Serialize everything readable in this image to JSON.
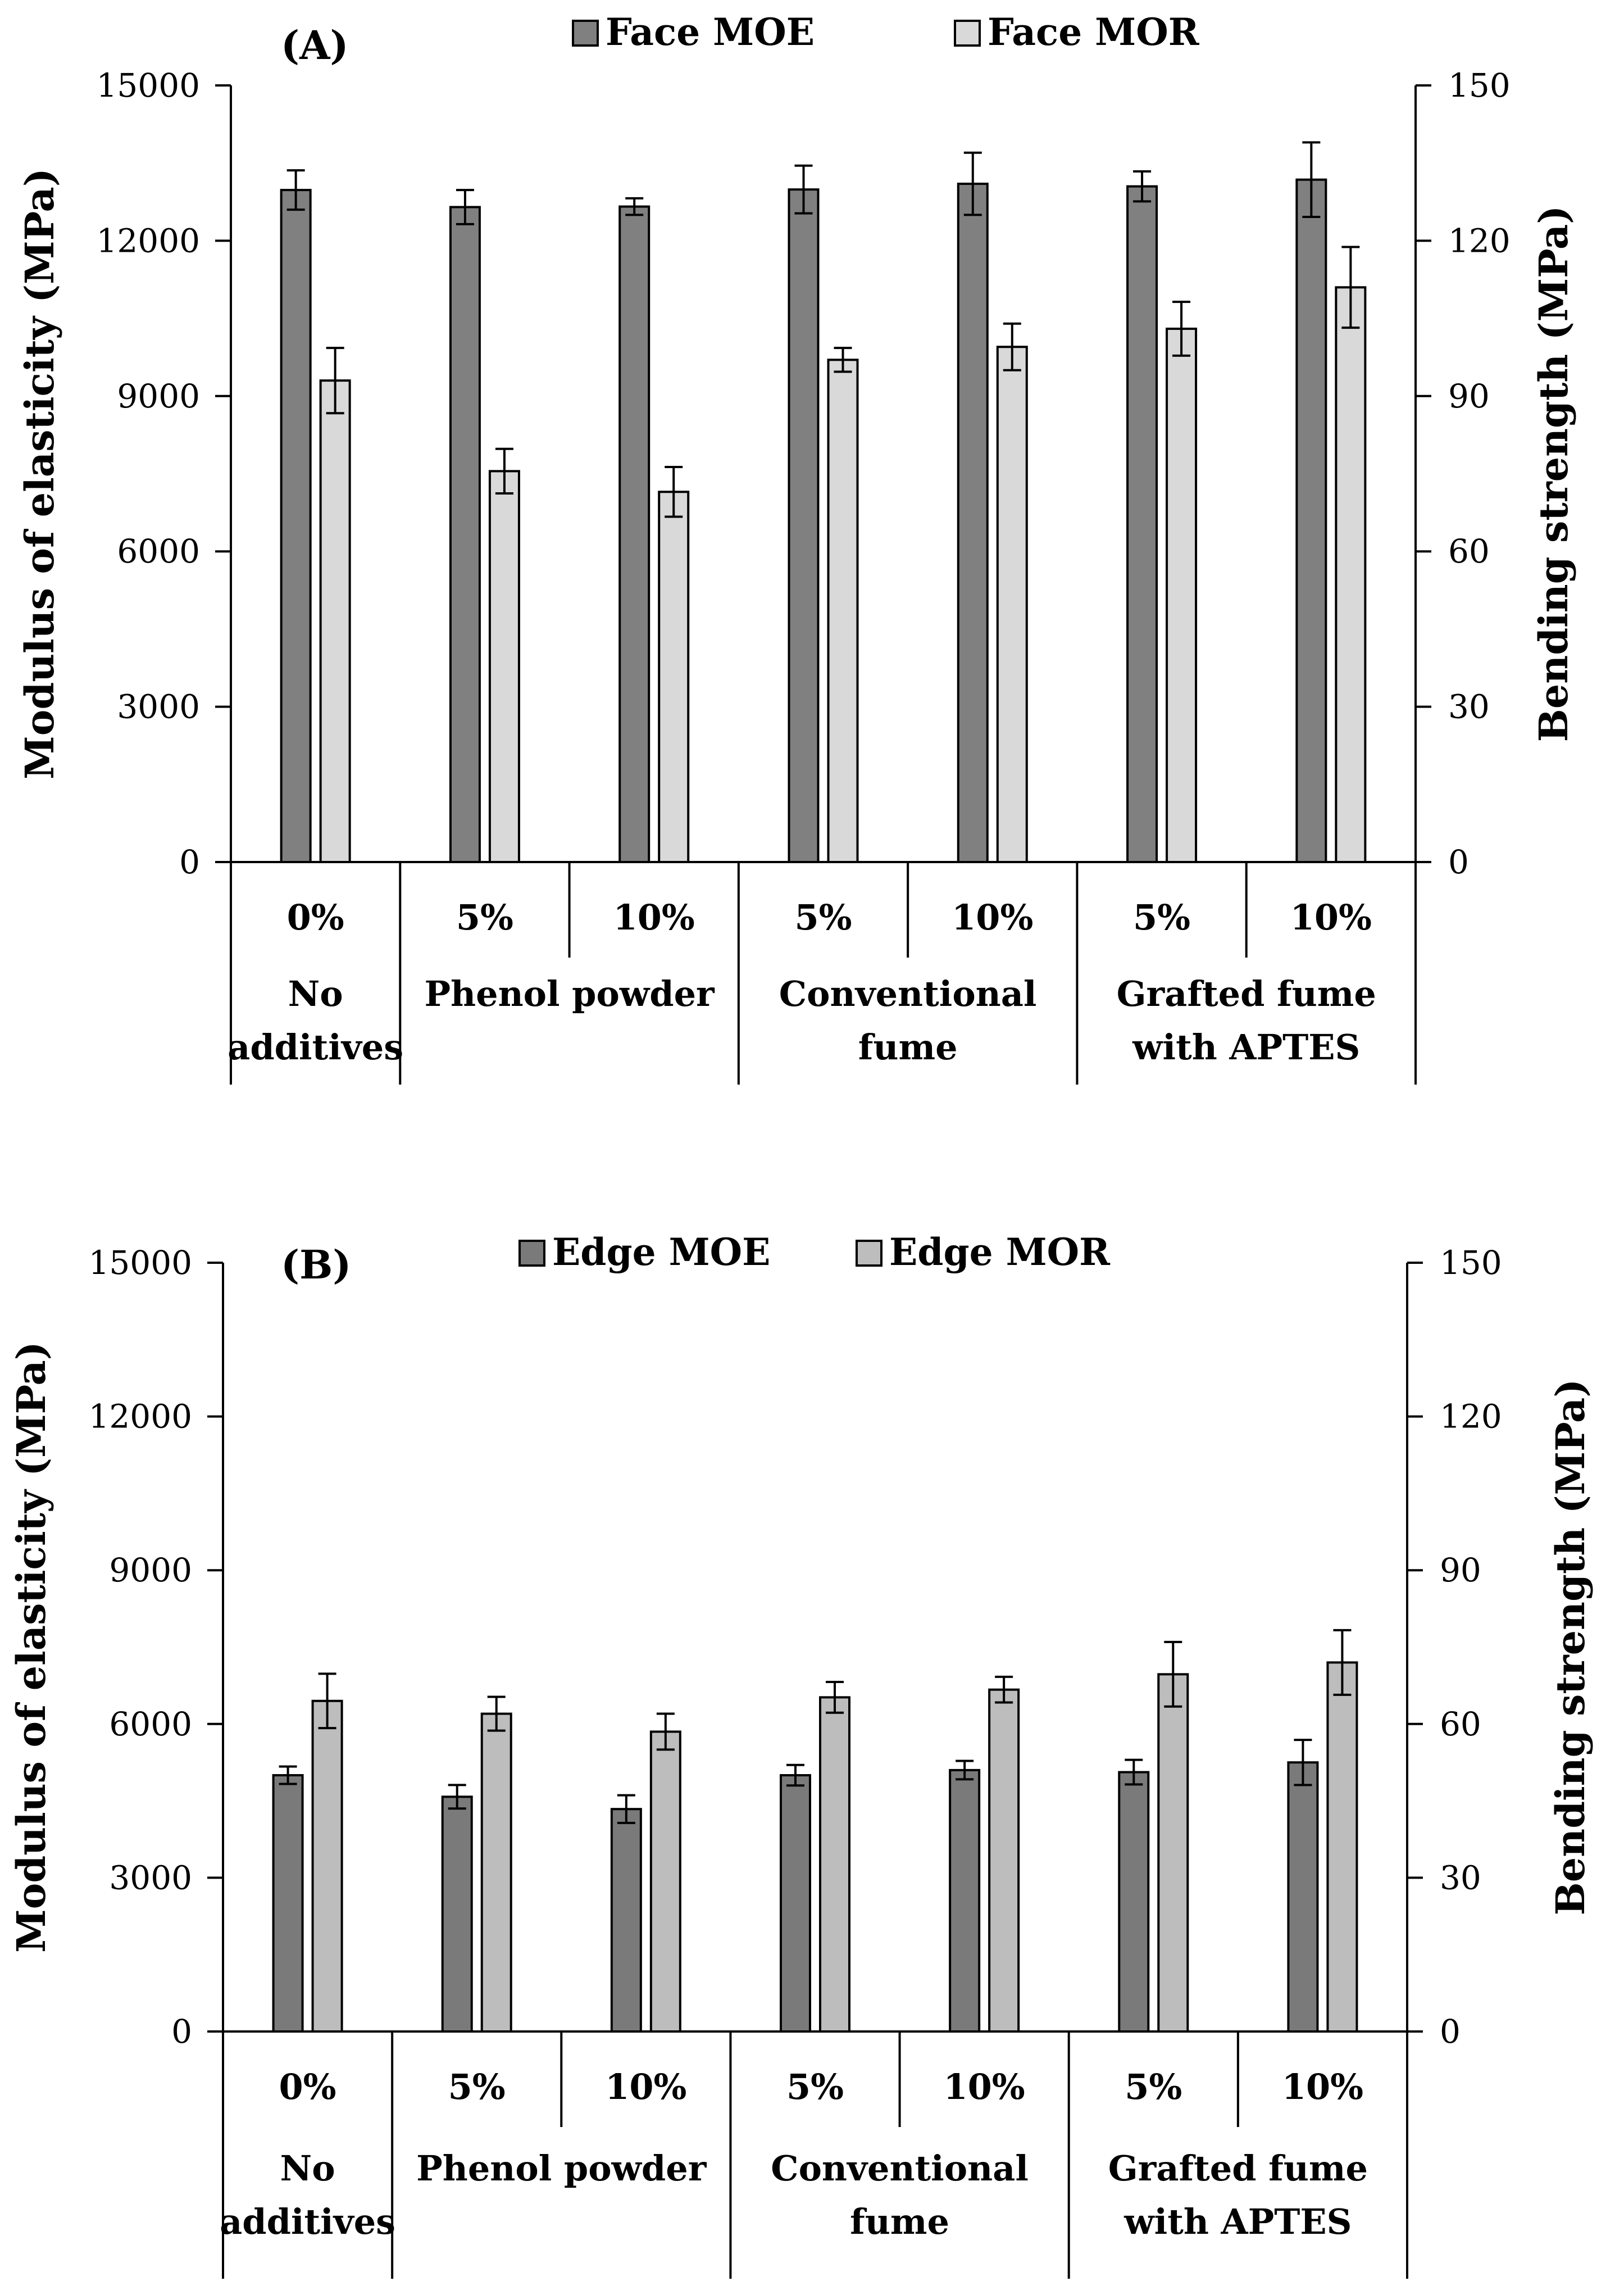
{
  "chart_data": [
    {
      "type": "bar",
      "panel_label": "(A)",
      "ylabel": "Modulus of elasticity (MPa)",
      "y2label": "Bending strength (MPa)",
      "ylim": [
        0,
        15000
      ],
      "y2lim": [
        0,
        150
      ],
      "yticks": [
        "0",
        "3000",
        "6000",
        "9000",
        "12000",
        "15000"
      ],
      "y2ticks": [
        "0",
        "30",
        "60",
        "90",
        "120",
        "150"
      ],
      "categories": [
        "0%",
        "5%",
        "10%",
        "5%",
        "10%",
        "5%",
        "10%"
      ],
      "groups": [
        {
          "label_lines": [
            "No",
            "additives"
          ]
        },
        {
          "label_lines": [
            "Phenol powder"
          ]
        },
        {
          "label_lines": [
            "Conventional",
            "fume"
          ]
        },
        {
          "label_lines": [
            "Grafted fume",
            "with APTES"
          ]
        }
      ],
      "series": [
        {
          "name": "Face MOE",
          "axis": "left",
          "color": "#808080",
          "values": [
            12980,
            12650,
            12660,
            12990,
            13100,
            13050,
            13180
          ],
          "errors": [
            380,
            330,
            160,
            460,
            600,
            290,
            720
          ]
        },
        {
          "name": "Face MOR",
          "axis": "right",
          "color": "#d9d9d9",
          "values": [
            93.0,
            75.5,
            71.5,
            97.0,
            99.5,
            103.0,
            111.0
          ],
          "errors": [
            6.3,
            4.3,
            4.8,
            2.3,
            4.5,
            5.2,
            7.8
          ]
        }
      ]
    },
    {
      "type": "bar",
      "panel_label": "(B)",
      "ylabel": "Modulus of elasticity (MPa)",
      "y2label": "Bending strength (MPa)",
      "ylim": [
        0,
        15000
      ],
      "y2lim": [
        0,
        150
      ],
      "yticks": [
        "0",
        "3000",
        "6000",
        "9000",
        "12000",
        "15000"
      ],
      "y2ticks": [
        "0",
        "30",
        "60",
        "90",
        "120",
        "150"
      ],
      "categories": [
        "0%",
        "5%",
        "10%",
        "5%",
        "10%",
        "5%",
        "10%"
      ],
      "groups": [
        {
          "label_lines": [
            "No",
            "additives"
          ]
        },
        {
          "label_lines": [
            "Phenol powder"
          ]
        },
        {
          "label_lines": [
            "Conventional",
            "fume"
          ]
        },
        {
          "label_lines": [
            "Grafted fume",
            "with APTES"
          ]
        }
      ],
      "series": [
        {
          "name": "Edge MOE",
          "axis": "left",
          "color": "#7a7a7a",
          "values": [
            5000,
            4580,
            4340,
            5000,
            5100,
            5060,
            5250
          ],
          "errors": [
            170,
            230,
            270,
            200,
            180,
            240,
            440
          ]
        },
        {
          "name": "Edge MOR",
          "axis": "right",
          "color": "#bdbdbd",
          "values": [
            64.5,
            62.0,
            58.5,
            65.2,
            66.7,
            69.7,
            72.0
          ],
          "errors": [
            5.3,
            3.3,
            3.5,
            3.0,
            2.5,
            6.3,
            6.3
          ]
        }
      ]
    }
  ]
}
